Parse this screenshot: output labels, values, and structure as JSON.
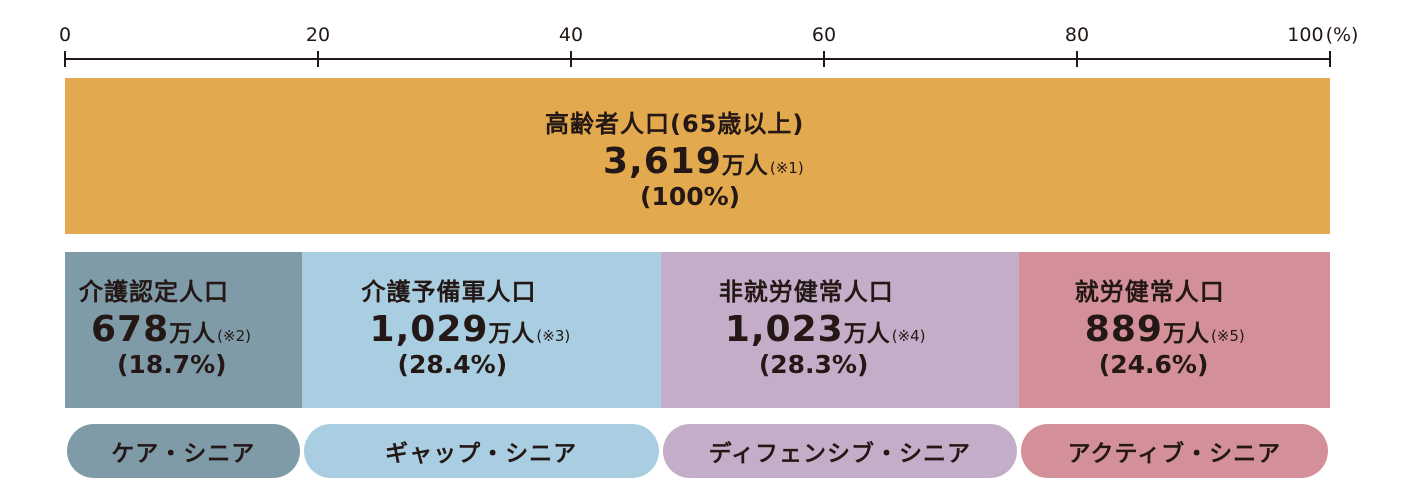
{
  "chart_data": {
    "type": "bar",
    "axis": {
      "ticks": [
        "0",
        "20",
        "40",
        "60",
        "80",
        "100"
      ],
      "unit_label": "(%)",
      "xlim": [
        0,
        100
      ]
    },
    "total": {
      "label": "高齢者人口(65歳以上)",
      "value": "3,619",
      "unit": "万人",
      "note": "(※1)",
      "percent_label": "(100%)",
      "percent": 100,
      "color": "#e3a94f"
    },
    "segments": [
      {
        "label": "介護認定人口",
        "value": "678",
        "unit": "万人",
        "note": "(※2)",
        "percent_label": "(18.7%)",
        "percent": 18.7,
        "color": "#7f9ba8",
        "category": "ケア・シニア",
        "pill_color": "#7f9ba8"
      },
      {
        "label": "介護予備軍人口",
        "value": "1,029",
        "unit": "万人",
        "note": "(※3)",
        "percent_label": "(28.4%)",
        "percent": 28.4,
        "color": "#a9cde1",
        "category": "ギャップ・シニア",
        "pill_color": "#a9cde1"
      },
      {
        "label": "非就労健常人口",
        "value": "1,023",
        "unit": "万人",
        "note": "(※4)",
        "percent_label": "(28.3%)",
        "percent": 28.3,
        "color": "#c4adc8",
        "category": "ディフェンシブ・シニア",
        "pill_color": "#c4adc8"
      },
      {
        "label": "就労健常人口",
        "value": "889",
        "unit": "万人",
        "note": "(※5)",
        "percent_label": "(24.6%)",
        "percent": 24.6,
        "color": "#d49099",
        "category": "アクティブ・シニア",
        "pill_color": "#d49099"
      }
    ]
  }
}
